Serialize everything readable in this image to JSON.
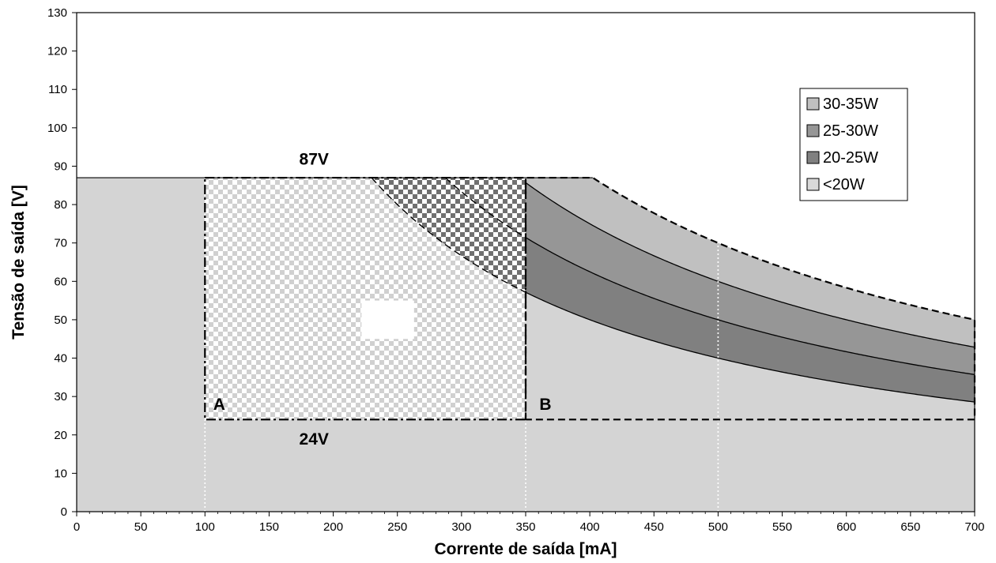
{
  "chart_data": {
    "type": "area",
    "xlabel": "Corrente de saída [mA]",
    "ylabel": "Tensão de saída [V]",
    "xlim": [
      0,
      700
    ],
    "ylim": [
      0,
      130
    ],
    "x_ticks": [
      0,
      50,
      100,
      150,
      200,
      250,
      300,
      350,
      400,
      450,
      500,
      550,
      600,
      650,
      700
    ],
    "y_ticks": [
      0,
      10,
      20,
      30,
      40,
      50,
      60,
      70,
      80,
      90,
      100,
      110,
      120,
      130
    ],
    "max_voltage": 87,
    "min_voltage": 24,
    "power_curves_w": [
      20,
      25,
      30,
      35
    ],
    "series": [
      {
        "name": "30-35W",
        "color": "#c0c0c0",
        "power_range_w": [
          30,
          35
        ]
      },
      {
        "name": "25-30W",
        "color": "#969696",
        "power_range_w": [
          25,
          30
        ]
      },
      {
        "name": "20-25W",
        "color": "#808080",
        "power_range_w": [
          20,
          25
        ]
      },
      {
        "name": "<20W",
        "color": "#d9d9d9",
        "power_range_w": [
          0,
          20
        ]
      }
    ],
    "annotations": [
      {
        "text": "87V",
        "x": 185,
        "y": 87
      },
      {
        "text": "24V",
        "x": 185,
        "y": 24
      },
      {
        "text": "A",
        "x": 100,
        "y": 24
      },
      {
        "text": "B",
        "x": 350,
        "y": 24
      }
    ],
    "region_A": {
      "current_ma": [
        100,
        350
      ],
      "voltage_v": [
        24,
        87
      ]
    },
    "region_B": {
      "current_ma": [
        350,
        700
      ],
      "voltage_v": [
        24,
        87
      ]
    },
    "dotted_verticals_ma": [
      100,
      350,
      500
    ],
    "background_color": "#d4d4d4",
    "legend_position": "top-right",
    "grid": false
  }
}
